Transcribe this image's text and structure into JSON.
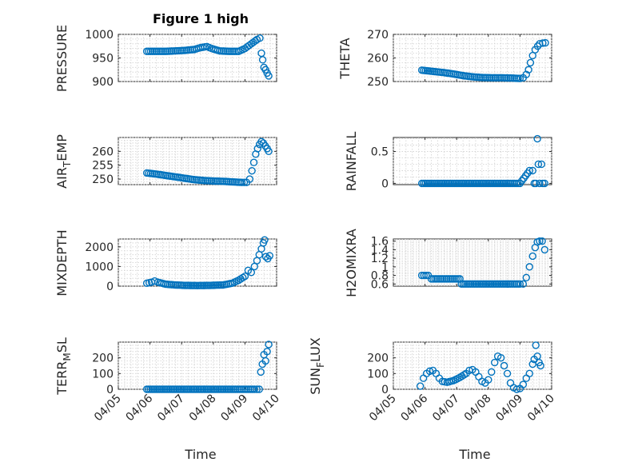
{
  "colors": {
    "marker": "#0072BD",
    "axis": "#262626",
    "grid": "#d0d0d0"
  },
  "chart_data": [
    {
      "type": "scatter",
      "title": "Figure 1 high",
      "ylabel": "PRESSURE",
      "ylim": [
        900,
        1000
      ],
      "yticks": [
        "900",
        "950",
        "1000"
      ],
      "ytick_values": [
        900,
        950,
        1000
      ],
      "grid": true,
      "x_tick_labels_shown": false,
      "points": [
        [
          5.9,
          964
        ],
        [
          6.2,
          964
        ],
        [
          6.5,
          964
        ],
        [
          6.8,
          965
        ],
        [
          7.1,
          966
        ],
        [
          7.4,
          968
        ],
        [
          7.6,
          972
        ],
        [
          7.8,
          974
        ],
        [
          7.95,
          970
        ],
        [
          8.2,
          965
        ],
        [
          8.5,
          964
        ],
        [
          8.8,
          964
        ],
        [
          9.0,
          970
        ],
        [
          9.2,
          980
        ],
        [
          9.38,
          989
        ],
        [
          9.47,
          992
        ],
        [
          9.52,
          960
        ],
        [
          9.56,
          946
        ],
        [
          9.6,
          930
        ],
        [
          9.65,
          925
        ],
        [
          9.7,
          918
        ],
        [
          9.75,
          912
        ]
      ]
    },
    {
      "type": "scatter",
      "ylabel": "THETA",
      "ylim": [
        250,
        270
      ],
      "yticks": [
        "250",
        "260",
        "270"
      ],
      "ytick_values": [
        250,
        260,
        270
      ],
      "grid": true,
      "x_tick_labels_shown": false,
      "points": [
        [
          5.9,
          254.8
        ],
        [
          6.3,
          254.2
        ],
        [
          6.6,
          253.8
        ],
        [
          6.9,
          253.2
        ],
        [
          7.2,
          252.5
        ],
        [
          7.5,
          252.0
        ],
        [
          7.8,
          251.7
        ],
        [
          8.1,
          251.6
        ],
        [
          8.4,
          251.6
        ],
        [
          8.7,
          251.5
        ],
        [
          9.0,
          251.3
        ],
        [
          9.1,
          251.6
        ],
        [
          9.2,
          253
        ],
        [
          9.27,
          255
        ],
        [
          9.33,
          258
        ],
        [
          9.4,
          261
        ],
        [
          9.48,
          263.5
        ],
        [
          9.56,
          265
        ],
        [
          9.62,
          266
        ],
        [
          9.72,
          266.3
        ],
        [
          9.8,
          266.4
        ]
      ]
    },
    {
      "type": "scatter",
      "ylabel": "AIR_TEMP",
      "ylabel_parts": [
        "AIR",
        "T",
        "EMP"
      ],
      "ylim": [
        248,
        265
      ],
      "yticks": [
        "250",
        "255",
        "260"
      ],
      "ytick_values": [
        250,
        255,
        260
      ],
      "grid": true,
      "x_tick_labels_shown": false,
      "points": [
        [
          5.9,
          252.2
        ],
        [
          6.2,
          251.8
        ],
        [
          6.5,
          251.3
        ],
        [
          6.8,
          250.8
        ],
        [
          7.1,
          250.3
        ],
        [
          7.4,
          249.8
        ],
        [
          7.7,
          249.5
        ],
        [
          8.0,
          249.3
        ],
        [
          8.3,
          249.2
        ],
        [
          8.6,
          249.0
        ],
        [
          8.9,
          248.8
        ],
        [
          9.05,
          248.8
        ],
        [
          9.15,
          250
        ],
        [
          9.22,
          253
        ],
        [
          9.28,
          256
        ],
        [
          9.34,
          259
        ],
        [
          9.4,
          261
        ],
        [
          9.46,
          262.5
        ],
        [
          9.52,
          263.5
        ],
        [
          9.58,
          263
        ],
        [
          9.64,
          262
        ],
        [
          9.7,
          261
        ],
        [
          9.75,
          260
        ]
      ]
    },
    {
      "type": "scatter",
      "ylabel": "RAINFALL",
      "ylim": [
        -0.02,
        0.72
      ],
      "yticks": [
        "0",
        "0.5"
      ],
      "ytick_values": [
        0,
        0.5
      ],
      "grid": true,
      "x_tick_labels_shown": false,
      "points": [
        [
          5.9,
          0
        ],
        [
          6.3,
          0
        ],
        [
          6.7,
          0
        ],
        [
          7.1,
          0
        ],
        [
          7.5,
          0
        ],
        [
          7.9,
          0
        ],
        [
          8.3,
          0
        ],
        [
          8.7,
          0
        ],
        [
          9.0,
          0
        ],
        [
          9.3,
          0.2
        ],
        [
          9.4,
          0.2
        ],
        [
          9.45,
          0
        ],
        [
          9.5,
          0
        ],
        [
          9.55,
          0.7
        ],
        [
          9.58,
          0.3
        ],
        [
          9.62,
          0
        ],
        [
          9.68,
          0.3
        ],
        [
          9.72,
          0
        ],
        [
          9.78,
          0
        ]
      ]
    },
    {
      "type": "scatter",
      "ylabel": "MIXDEPTH",
      "ylim": [
        0,
        2400
      ],
      "yticks": [
        "0",
        "1000",
        "2000"
      ],
      "ytick_values": [
        0,
        1000,
        2000
      ],
      "grid": true,
      "x_tick_labels_shown": false,
      "points": [
        [
          5.9,
          150
        ],
        [
          6.05,
          200
        ],
        [
          6.15,
          260
        ],
        [
          6.25,
          200
        ],
        [
          6.5,
          100
        ],
        [
          6.8,
          60
        ],
        [
          7.1,
          40
        ],
        [
          7.5,
          30
        ],
        [
          7.9,
          40
        ],
        [
          8.3,
          60
        ],
        [
          8.6,
          150
        ],
        [
          8.8,
          300
        ],
        [
          9.0,
          500
        ],
        [
          9.1,
          800
        ],
        [
          9.2,
          700
        ],
        [
          9.3,
          1000
        ],
        [
          9.38,
          1300
        ],
        [
          9.45,
          1600
        ],
        [
          9.52,
          1900
        ],
        [
          9.58,
          2200
        ],
        [
          9.62,
          2350
        ],
        [
          9.66,
          1500
        ],
        [
          9.72,
          1400
        ],
        [
          9.78,
          1550
        ]
      ]
    },
    {
      "type": "scatter",
      "ylabel": "H2OMIXRA",
      "ylim": [
        0.55,
        1.65
      ],
      "yticks": [
        "0.6",
        "0.8",
        "1",
        "1.2",
        "1.4",
        "1.6"
      ],
      "ytick_values": [
        0.6,
        0.8,
        1.0,
        1.2,
        1.4,
        1.6
      ],
      "grid": true,
      "x_tick_labels_shown": false,
      "points": [
        [
          5.9,
          0.8
        ],
        [
          6.1,
          0.8
        ],
        [
          6.2,
          0.72
        ],
        [
          6.5,
          0.72
        ],
        [
          6.8,
          0.72
        ],
        [
          7.1,
          0.72
        ],
        [
          7.15,
          0.6
        ],
        [
          7.5,
          0.6
        ],
        [
          7.9,
          0.6
        ],
        [
          8.3,
          0.6
        ],
        [
          8.7,
          0.6
        ],
        [
          9.0,
          0.6
        ],
        [
          9.1,
          0.6
        ],
        [
          9.2,
          0.75
        ],
        [
          9.3,
          1.0
        ],
        [
          9.4,
          1.25
        ],
        [
          9.48,
          1.45
        ],
        [
          9.55,
          1.58
        ],
        [
          9.62,
          1.6
        ],
        [
          9.7,
          1.6
        ],
        [
          9.78,
          1.4
        ]
      ]
    },
    {
      "type": "scatter",
      "ylabel": "TERR_MSL",
      "ylabel_parts": [
        "TERR",
        "M",
        "SL"
      ],
      "ylim": [
        0,
        300
      ],
      "yticks": [
        "0",
        "100",
        "200"
      ],
      "ytick_values": [
        0,
        100,
        200
      ],
      "grid": true,
      "x_tick_labels_shown": true,
      "xlabel": "Time",
      "points": [
        [
          5.9,
          0
        ],
        [
          6.3,
          0
        ],
        [
          6.7,
          0
        ],
        [
          7.1,
          0
        ],
        [
          7.5,
          0
        ],
        [
          7.9,
          0
        ],
        [
          8.3,
          0
        ],
        [
          8.7,
          0
        ],
        [
          9.0,
          0
        ],
        [
          9.3,
          0
        ],
        [
          9.45,
          0
        ],
        [
          9.5,
          110
        ],
        [
          9.55,
          160
        ],
        [
          9.6,
          220
        ],
        [
          9.65,
          180
        ],
        [
          9.7,
          240
        ],
        [
          9.75,
          285
        ]
      ]
    },
    {
      "type": "scatter",
      "ylabel": "SUN_FLUX",
      "ylabel_parts": [
        "SUN",
        "F",
        "LUX"
      ],
      "ylim": [
        0,
        300
      ],
      "yticks": [
        "0",
        "100",
        "200"
      ],
      "ytick_values": [
        0,
        100,
        200
      ],
      "grid": true,
      "x_tick_labels_shown": true,
      "xlabel": "Time",
      "points": [
        [
          5.85,
          20
        ],
        [
          5.95,
          70
        ],
        [
          6.05,
          100
        ],
        [
          6.15,
          115
        ],
        [
          6.25,
          120
        ],
        [
          6.35,
          100
        ],
        [
          6.45,
          70
        ],
        [
          6.55,
          50
        ],
        [
          6.7,
          45
        ],
        [
          6.9,
          55
        ],
        [
          7.1,
          75
        ],
        [
          7.3,
          100
        ],
        [
          7.4,
          120
        ],
        [
          7.5,
          125
        ],
        [
          7.6,
          110
        ],
        [
          7.7,
          80
        ],
        [
          7.8,
          50
        ],
        [
          7.9,
          40
        ],
        [
          8.0,
          60
        ],
        [
          8.1,
          110
        ],
        [
          8.2,
          170
        ],
        [
          8.3,
          210
        ],
        [
          8.4,
          200
        ],
        [
          8.5,
          150
        ],
        [
          8.6,
          100
        ],
        [
          8.7,
          40
        ],
        [
          8.8,
          10
        ],
        [
          8.9,
          0
        ],
        [
          9.0,
          5
        ],
        [
          9.1,
          30
        ],
        [
          9.2,
          70
        ],
        [
          9.3,
          100
        ],
        [
          9.4,
          160
        ],
        [
          9.45,
          190
        ],
        [
          9.5,
          280
        ],
        [
          9.55,
          210
        ],
        [
          9.6,
          170
        ],
        [
          9.65,
          150
        ]
      ]
    }
  ],
  "x_axis": {
    "xlim": [
      5,
      10
    ],
    "tick_values": [
      5,
      6,
      7,
      8,
      9,
      10
    ],
    "tick_labels": [
      "04/05",
      "04/06",
      "04/07",
      "04/08",
      "04/09",
      "04/10"
    ]
  }
}
